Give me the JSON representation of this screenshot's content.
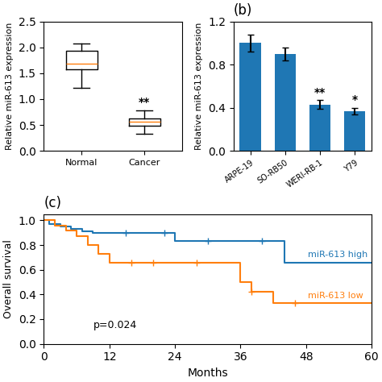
{
  "chart_data": [
    {
      "type": "box",
      "ylabel": "Relative miR-613 expression",
      "categories": [
        "Normal",
        "Cancer"
      ],
      "boxes": [
        {
          "median": 1.68,
          "q1": 1.57,
          "q3": 1.93,
          "whisker_low": 1.22,
          "whisker_high": 2.08
        },
        {
          "median": 0.57,
          "q1": 0.49,
          "q3": 0.63,
          "whisker_low": 0.33,
          "whisker_high": 0.78
        }
      ],
      "value_annotations": [
        null,
        "**"
      ],
      "ylim": [
        0,
        2.5
      ],
      "yticks": [
        0.0,
        0.5,
        1.0,
        1.5,
        2.0,
        2.5
      ]
    },
    {
      "type": "bar",
      "title": "(b)",
      "ylabel": "Relative miR-613 expression",
      "categories": [
        "ARPE-19",
        "SO-RB50",
        "WERI-RB-1",
        "Y79"
      ],
      "values": [
        1.0,
        0.9,
        0.43,
        0.37
      ],
      "errors": [
        0.08,
        0.06,
        0.04,
        0.03
      ],
      "value_annotations": [
        null,
        null,
        "**",
        "*"
      ],
      "ylim": [
        0,
        1.2
      ],
      "yticks": [
        0.0,
        0.4,
        0.8,
        1.2
      ]
    },
    {
      "type": "step",
      "title": "(c)",
      "xlabel": "Months",
      "ylabel": "Overall survival",
      "annotation": "p=0.024",
      "xlim": [
        0,
        60
      ],
      "ylim": [
        0,
        1.05
      ],
      "xticks": [
        0,
        12,
        24,
        36,
        48,
        60
      ],
      "yticks": [
        0.0,
        0.2,
        0.4,
        0.6,
        0.8,
        1.0
      ],
      "series": [
        {
          "name": "miR-613 high",
          "x": [
            0,
            1,
            3,
            5,
            7,
            9,
            12,
            15,
            18,
            22,
            24,
            30,
            36,
            40,
            44,
            48,
            60
          ],
          "values": [
            1.0,
            0.97,
            0.95,
            0.93,
            0.91,
            0.9,
            0.9,
            0.9,
            0.9,
            0.9,
            0.83,
            0.83,
            0.83,
            0.83,
            0.66,
            0.66,
            0.66
          ],
          "censor_x": [
            15,
            22,
            30,
            40
          ],
          "censor_y": [
            0.9,
            0.9,
            0.83,
            0.83
          ]
        },
        {
          "name": "miR-613 low",
          "x": [
            0,
            2,
            4,
            6,
            8,
            10,
            12,
            16,
            20,
            24,
            28,
            32,
            36,
            38,
            42,
            46,
            48,
            60
          ],
          "values": [
            1.0,
            0.96,
            0.92,
            0.87,
            0.8,
            0.73,
            0.66,
            0.66,
            0.66,
            0.66,
            0.66,
            0.66,
            0.5,
            0.42,
            0.33,
            0.33,
            0.33,
            0.33
          ],
          "censor_x": [
            16,
            20,
            28,
            38,
            46
          ],
          "censor_y": [
            0.66,
            0.66,
            0.66,
            0.42,
            0.33
          ]
        }
      ]
    }
  ]
}
